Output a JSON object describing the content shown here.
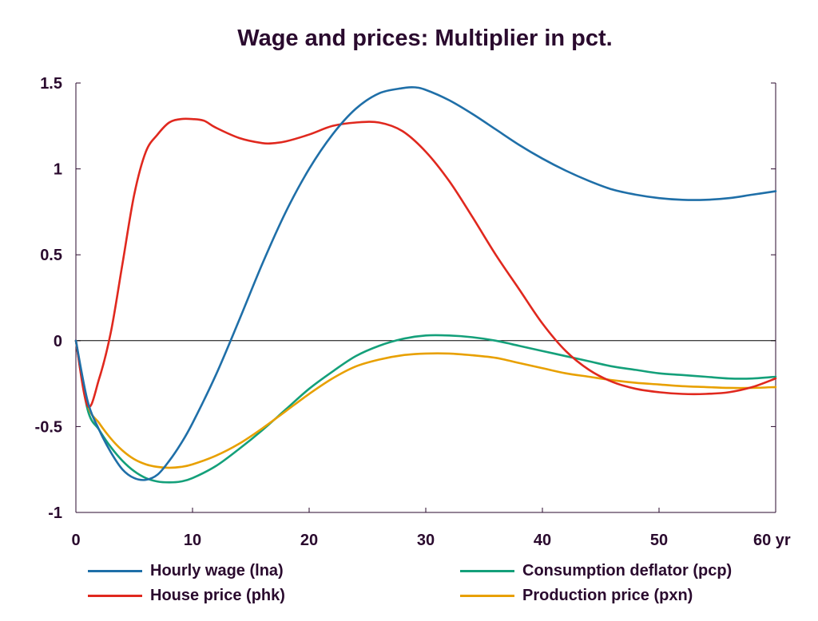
{
  "chart_data": {
    "type": "line",
    "title": "Wage and prices: Multiplier in pct.",
    "xlabel": "",
    "ylabel": "",
    "xlim": [
      0,
      60
    ],
    "ylim": [
      -1,
      1.5
    ],
    "x_ticks": [
      0,
      10,
      20,
      30,
      40,
      50,
      60
    ],
    "x_tick_labels": [
      "0",
      "10",
      "20",
      "30",
      "40",
      "50",
      "60 yr"
    ],
    "y_ticks": [
      -1,
      -0.5,
      0,
      0.5,
      1,
      1.5
    ],
    "y_tick_labels": [
      "-1",
      "-0.5",
      "0",
      "0.5",
      "1",
      "1.5"
    ],
    "grid": false,
    "zero_line": true,
    "legend_position": "bottom",
    "series": [
      {
        "name": "Hourly wage (lna)",
        "color": "#1f6fa8",
        "x": [
          0,
          1,
          2,
          3,
          4,
          5,
          6,
          7,
          8,
          9,
          10,
          12,
          14,
          16,
          18,
          20,
          22,
          24,
          26,
          28,
          29,
          30,
          32,
          34,
          36,
          38,
          40,
          42,
          44,
          46,
          48,
          50,
          52,
          54,
          56,
          58,
          60
        ],
        "y": [
          0,
          -0.35,
          -0.52,
          -0.65,
          -0.75,
          -0.8,
          -0.81,
          -0.78,
          -0.7,
          -0.6,
          -0.48,
          -0.2,
          0.12,
          0.45,
          0.75,
          1.0,
          1.2,
          1.35,
          1.44,
          1.47,
          1.475,
          1.46,
          1.4,
          1.32,
          1.23,
          1.14,
          1.06,
          0.99,
          0.93,
          0.88,
          0.85,
          0.83,
          0.82,
          0.82,
          0.83,
          0.85,
          0.87
        ]
      },
      {
        "name": "House price (phk)",
        "color": "#e0281e",
        "x": [
          0,
          1,
          2,
          3,
          4,
          5,
          6,
          7,
          8,
          9,
          10,
          11,
          12,
          14,
          16,
          17,
          18,
          20,
          22,
          24,
          26,
          28,
          30,
          32,
          34,
          36,
          38,
          40,
          42,
          44,
          46,
          48,
          50,
          52,
          54,
          56,
          58,
          60
        ],
        "y": [
          0,
          -0.38,
          -0.22,
          0.05,
          0.45,
          0.85,
          1.1,
          1.2,
          1.27,
          1.29,
          1.29,
          1.28,
          1.24,
          1.18,
          1.15,
          1.15,
          1.16,
          1.2,
          1.25,
          1.27,
          1.27,
          1.22,
          1.1,
          0.93,
          0.72,
          0.5,
          0.3,
          0.1,
          -0.06,
          -0.17,
          -0.24,
          -0.28,
          -0.3,
          -0.31,
          -0.31,
          -0.3,
          -0.27,
          -0.22
        ]
      },
      {
        "name": "Consumption deflator (pcp)",
        "color": "#14a07a",
        "x": [
          0,
          1,
          2,
          3,
          4,
          5,
          6,
          7,
          8,
          9,
          10,
          12,
          14,
          16,
          18,
          20,
          22,
          24,
          26,
          28,
          30,
          32,
          34,
          36,
          38,
          40,
          42,
          44,
          46,
          48,
          50,
          52,
          54,
          56,
          58,
          60
        ],
        "y": [
          0,
          -0.4,
          -0.52,
          -0.62,
          -0.7,
          -0.76,
          -0.8,
          -0.82,
          -0.825,
          -0.82,
          -0.8,
          -0.73,
          -0.63,
          -0.52,
          -0.4,
          -0.28,
          -0.18,
          -0.09,
          -0.03,
          0.01,
          0.03,
          0.03,
          0.02,
          0.0,
          -0.03,
          -0.06,
          -0.09,
          -0.12,
          -0.15,
          -0.17,
          -0.19,
          -0.2,
          -0.21,
          -0.22,
          -0.22,
          -0.21
        ]
      },
      {
        "name": "Production price (pxn)",
        "color": "#e8a000",
        "x": [
          0,
          1,
          2,
          3,
          4,
          5,
          6,
          7,
          8,
          9,
          10,
          12,
          14,
          16,
          18,
          20,
          22,
          24,
          26,
          28,
          30,
          32,
          34,
          36,
          38,
          40,
          42,
          44,
          46,
          48,
          50,
          52,
          54,
          56,
          58,
          60
        ],
        "y": [
          0,
          -0.37,
          -0.48,
          -0.57,
          -0.64,
          -0.69,
          -0.72,
          -0.735,
          -0.74,
          -0.735,
          -0.72,
          -0.67,
          -0.6,
          -0.51,
          -0.41,
          -0.31,
          -0.22,
          -0.15,
          -0.11,
          -0.085,
          -0.075,
          -0.075,
          -0.085,
          -0.1,
          -0.13,
          -0.16,
          -0.19,
          -0.21,
          -0.23,
          -0.245,
          -0.255,
          -0.265,
          -0.27,
          -0.275,
          -0.275,
          -0.27
        ]
      }
    ]
  }
}
